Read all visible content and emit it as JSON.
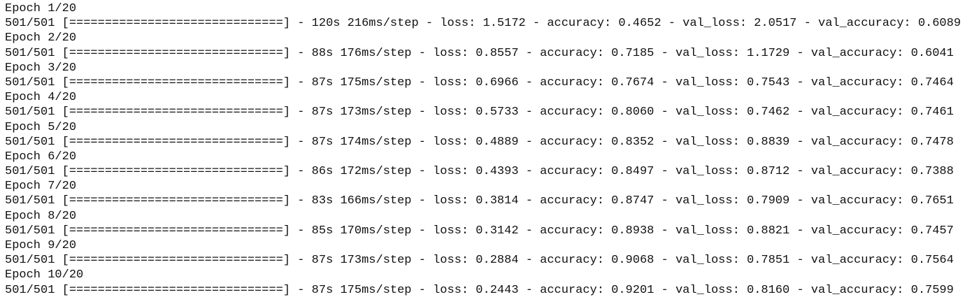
{
  "epochs": [
    {
      "header": "Epoch 1/20",
      "log": "501/501 [==============================] - 120s 216ms/step - loss: 1.5172 - accuracy: 0.4652 - val_loss: 2.0517 - val_accuracy: 0.6089"
    },
    {
      "header": "Epoch 2/20",
      "log": "501/501 [==============================] - 88s 176ms/step - loss: 0.8557 - accuracy: 0.7185 - val_loss: 1.1729 - val_accuracy: 0.6041"
    },
    {
      "header": "Epoch 3/20",
      "log": "501/501 [==============================] - 87s 175ms/step - loss: 0.6966 - accuracy: 0.7674 - val_loss: 0.7543 - val_accuracy: 0.7464"
    },
    {
      "header": "Epoch 4/20",
      "log": "501/501 [==============================] - 87s 173ms/step - loss: 0.5733 - accuracy: 0.8060 - val_loss: 0.7462 - val_accuracy: 0.7461"
    },
    {
      "header": "Epoch 5/20",
      "log": "501/501 [==============================] - 87s 174ms/step - loss: 0.4889 - accuracy: 0.8352 - val_loss: 0.8839 - val_accuracy: 0.7478"
    },
    {
      "header": "Epoch 6/20",
      "log": "501/501 [==============================] - 86s 172ms/step - loss: 0.4393 - accuracy: 0.8497 - val_loss: 0.8712 - val_accuracy: 0.7388"
    },
    {
      "header": "Epoch 7/20",
      "log": "501/501 [==============================] - 83s 166ms/step - loss: 0.3814 - accuracy: 0.8747 - val_loss: 0.7909 - val_accuracy: 0.7651"
    },
    {
      "header": "Epoch 8/20",
      "log": "501/501 [==============================] - 85s 170ms/step - loss: 0.3142 - accuracy: 0.8938 - val_loss: 0.8821 - val_accuracy: 0.7457"
    },
    {
      "header": "Epoch 9/20",
      "log": "501/501 [==============================] - 87s 173ms/step - loss: 0.2884 - accuracy: 0.9068 - val_loss: 0.7851 - val_accuracy: 0.7564"
    },
    {
      "header": "Epoch 10/20",
      "log": "501/501 [==============================] - 87s 175ms/step - loss: 0.2443 - accuracy: 0.9201 - val_loss: 0.8160 - val_accuracy: 0.7599"
    }
  ]
}
